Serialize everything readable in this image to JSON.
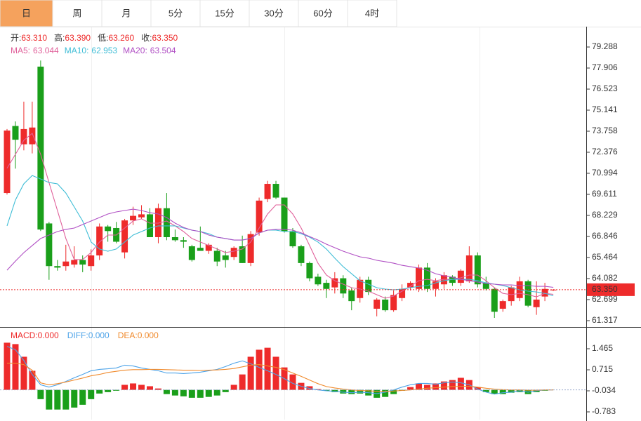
{
  "tabs": {
    "items": [
      "日",
      "周",
      "月",
      "5分",
      "15分",
      "30分",
      "60分",
      "4时"
    ],
    "active": 0
  },
  "chart_data": [
    {
      "type": "candlestick",
      "info": [
        {
          "label": "开:",
          "value": "63.310"
        },
        {
          "label": "高:",
          "value": "63.390"
        },
        {
          "label": "低:",
          "value": "63.260"
        },
        {
          "label": "收:",
          "value": "63.350"
        }
      ],
      "up_color": "#ee2b2b",
      "down_color": "#1a9f1a",
      "open": [
        69.7,
        74.1,
        72.9,
        72.9,
        78.0,
        67.7,
        64.9,
        64.9,
        65.0,
        65.3,
        64.9,
        65.6,
        67.5,
        67.4,
        65.8,
        67.9,
        68.1,
        68.3,
        66.8,
        68.7,
        66.8,
        66.6,
        66.2,
        66.1,
        65.9,
        65.9,
        65.6,
        65.5,
        66.2,
        65.1,
        67.1,
        69.3,
        70.3,
        69.4,
        67.2,
        66.2,
        65.1,
        64.2,
        63.8,
        63.5,
        64.1,
        63.3,
        62.8,
        64.0,
        62.1,
        62.7,
        62.0,
        62.8,
        63.5,
        63.4,
        64.8,
        63.4,
        63.7,
        64.2,
        63.8,
        63.9,
        65.6,
        63.8,
        63.4,
        62.1,
        62.6,
        62.8,
        63.9,
        62.2,
        62.9,
        63.31
      ],
      "high": [
        73.9,
        74.4,
        75.7,
        75.7,
        78.4,
        67.8,
        65.3,
        66.3,
        66.2,
        65.6,
        66.0,
        67.7,
        67.6,
        67.8,
        68.0,
        68.8,
        68.9,
        68.7,
        69.0,
        69.7,
        67.3,
        66.8,
        66.3,
        67.5,
        66.4,
        66.1,
        65.9,
        66.2,
        66.9,
        67.2,
        69.4,
        70.5,
        70.5,
        69.4,
        67.4,
        66.3,
        65.2,
        64.4,
        64.0,
        64.5,
        64.3,
        63.5,
        64.2,
        64.2,
        62.8,
        62.9,
        63.3,
        63.7,
        63.9,
        65.0,
        65.1,
        64.1,
        64.5,
        64.3,
        64.7,
        66.2,
        65.8,
        64.2,
        63.5,
        62.7,
        63.6,
        64.2,
        64.0,
        63.9,
        63.8,
        63.39
      ],
      "low": [
        69.6,
        71.3,
        72.5,
        72.3,
        67.2,
        64.0,
        64.6,
        64.6,
        64.8,
        64.5,
        64.6,
        65.3,
        66.5,
        66.4,
        65.4,
        67.6,
        68.0,
        66.8,
        66.4,
        66.6,
        66.5,
        66.1,
        65.2,
        65.9,
        65.7,
        64.9,
        64.8,
        65.3,
        65.1,
        64.9,
        66.9,
        69.1,
        69.3,
        67.1,
        66.1,
        64.9,
        63.9,
        63.6,
        62.8,
        63.1,
        62.8,
        62.0,
        62.5,
        63.0,
        61.6,
        61.9,
        61.9,
        62.6,
        63.3,
        63.2,
        63.2,
        62.9,
        63.4,
        63.6,
        63.6,
        63.8,
        63.5,
        63.3,
        61.5,
        61.9,
        62.3,
        62.6,
        62.2,
        61.7,
        62.6,
        63.26
      ],
      "close": [
        73.8,
        73.2,
        73.9,
        74.0,
        67.3,
        64.9,
        64.8,
        65.2,
        65.3,
        65.0,
        65.6,
        67.5,
        67.2,
        66.5,
        67.9,
        68.2,
        68.3,
        66.8,
        68.7,
        66.8,
        66.6,
        66.5,
        65.3,
        65.9,
        66.3,
        65.2,
        65.3,
        66.1,
        65.1,
        67.0,
        69.2,
        70.3,
        69.4,
        67.2,
        66.2,
        65.1,
        64.1,
        63.7,
        63.4,
        64.1,
        63.1,
        62.6,
        64.0,
        63.2,
        62.7,
        62.0,
        63.0,
        63.4,
        63.8,
        64.8,
        63.4,
        63.9,
        64.3,
        63.8,
        64.6,
        65.6,
        63.7,
        63.4,
        61.9,
        62.6,
        63.5,
        63.9,
        62.3,
        62.7,
        63.4,
        63.35
      ],
      "series": [
        {
          "name": "MA5:",
          "last_label": "63.044",
          "color": "#e0609a",
          "values": [
            71.32,
            72.24,
            73.16,
            73.62,
            72.24,
            70.39,
            68.55,
            66.71,
            65.33,
            65.33,
            65.79,
            66.48,
            66.94,
            66.94,
            67.4,
            67.86,
            68.0,
            67.72,
            67.72,
            67.86,
            67.54,
            67.17,
            66.71,
            66.48,
            66.25,
            66.02,
            65.79,
            65.88,
            66.02,
            66.48,
            67.4,
            68.32,
            68.92,
            68.92,
            68.32,
            67.4,
            66.25,
            65.09,
            64.31,
            63.94,
            63.71,
            63.48,
            63.39,
            63.25,
            63.02,
            62.79,
            62.93,
            63.25,
            63.57,
            63.94,
            64.03,
            63.94,
            64.03,
            64.03,
            64.13,
            64.31,
            64.31,
            63.94,
            63.48,
            63.11,
            63.02,
            63.11,
            63.02,
            62.88,
            63.11,
            63.044
          ]
        },
        {
          "name": "MA10:",
          "last_label": "62.953",
          "color": "#3fbdd6",
          "values": [
            67.54,
            69.24,
            70.3,
            70.85,
            70.62,
            70.39,
            70.3,
            69.7,
            68.78,
            67.86,
            66.48,
            66.02,
            65.88,
            66.02,
            66.48,
            66.94,
            67.17,
            67.4,
            67.54,
            67.54,
            67.54,
            67.4,
            67.26,
            67.17,
            67.03,
            66.8,
            66.71,
            66.61,
            66.61,
            66.71,
            67.08,
            67.26,
            67.26,
            67.17,
            67.17,
            67.03,
            66.8,
            66.48,
            66.02,
            65.42,
            64.86,
            64.4,
            63.94,
            63.71,
            63.48,
            63.39,
            63.34,
            63.39,
            63.48,
            63.57,
            63.62,
            63.8,
            63.94,
            64.03,
            64.03,
            64.03,
            63.94,
            63.8,
            63.71,
            63.62,
            63.48,
            63.34,
            63.25,
            63.2,
            63.11,
            62.953
          ]
        },
        {
          "name": "MA20:",
          "last_label": "63.504",
          "color": "#b04fc4",
          "values": [
            64.63,
            65.23,
            65.78,
            66.25,
            66.71,
            66.94,
            67.17,
            67.31,
            67.4,
            67.63,
            67.86,
            68.09,
            68.32,
            68.46,
            68.55,
            68.64,
            68.55,
            68.41,
            68.32,
            68.09,
            67.72,
            67.44,
            67.26,
            67.17,
            66.94,
            66.8,
            66.71,
            66.61,
            66.61,
            66.71,
            67.08,
            67.26,
            67.31,
            67.31,
            67.26,
            67.08,
            66.84,
            66.61,
            66.34,
            66.11,
            65.88,
            65.69,
            65.51,
            65.42,
            65.28,
            65.19,
            65.09,
            64.95,
            64.86,
            64.77,
            64.63,
            64.4,
            64.26,
            64.17,
            64.03,
            63.94,
            63.85,
            63.76,
            63.71,
            63.66,
            63.66,
            63.62,
            63.62,
            63.57,
            63.57,
            63.504
          ]
        }
      ],
      "last_price": {
        "value": 63.35,
        "label": "63.350"
      },
      "ylim": [
        60.901,
        80.624
      ],
      "yticks": [
        79.288,
        77.906,
        76.523,
        75.141,
        73.758,
        72.376,
        70.994,
        69.611,
        68.229,
        66.846,
        65.464,
        64.082,
        62.699,
        61.317
      ]
    },
    {
      "type": "macd",
      "series": [
        {
          "name": "MACD:",
          "last_label": "0.000",
          "color": "#ee2b2b",
          "down_color": "#1a9f1a",
          "kind": "bar",
          "values": [
            1.68,
            1.63,
            1.18,
            0.68,
            -0.33,
            -0.7,
            -0.7,
            -0.7,
            -0.63,
            -0.53,
            -0.33,
            -0.13,
            -0.08,
            -0.03,
            0.18,
            0.23,
            0.18,
            0.13,
            0.05,
            -0.15,
            -0.2,
            -0.23,
            -0.28,
            -0.28,
            -0.25,
            -0.2,
            -0.08,
            0.18,
            0.55,
            1.18,
            1.43,
            1.5,
            1.18,
            0.8,
            0.55,
            0.25,
            0.13,
            0.03,
            -0.03,
            -0.08,
            -0.13,
            -0.15,
            -0.13,
            -0.2,
            -0.28,
            -0.25,
            -0.15,
            -0.03,
            0.1,
            0.23,
            0.18,
            0.23,
            0.3,
            0.35,
            0.43,
            0.35,
            0.1,
            -0.08,
            -0.15,
            -0.15,
            -0.1,
            -0.08,
            -0.15,
            -0.08,
            -0.03,
            0
          ]
        },
        {
          "name": "DIFF:",
          "last_label": "0.000",
          "color": "#4da3e8",
          "kind": "line",
          "values": [
            1.55,
            1.43,
            1.05,
            0.55,
            0.18,
            0.1,
            0.18,
            0.3,
            0.43,
            0.55,
            0.68,
            0.73,
            0.75,
            0.78,
            0.88,
            0.85,
            0.78,
            0.73,
            0.68,
            0.6,
            0.6,
            0.58,
            0.6,
            0.63,
            0.68,
            0.73,
            0.83,
            0.95,
            1.03,
            0.93,
            0.8,
            0.68,
            0.55,
            0.4,
            0.23,
            0.13,
            0.05,
            0,
            -0.03,
            -0.05,
            -0.08,
            -0.1,
            -0.08,
            -0.1,
            -0.13,
            -0.08,
            0,
            0.1,
            0.18,
            0.23,
            0.23,
            0.2,
            0.25,
            0.28,
            0.25,
            0.18,
            0.03,
            -0.08,
            -0.15,
            -0.1,
            -0.08,
            -0.03,
            -0.08,
            -0.03,
            0,
            0
          ]
        },
        {
          "name": "DEA:",
          "last_label": "0.000",
          "color": "#f08a2c",
          "kind": "line",
          "values": [
            0.95,
            0.95,
            0.9,
            0.7,
            0.25,
            0.18,
            0.22,
            0.28,
            0.35,
            0.42,
            0.5,
            0.55,
            0.62,
            0.66,
            0.7,
            0.72,
            0.72,
            0.73,
            0.73,
            0.72,
            0.71,
            0.7,
            0.7,
            0.69,
            0.7,
            0.71,
            0.73,
            0.76,
            0.82,
            0.88,
            0.9,
            0.85,
            0.8,
            0.72,
            0.6,
            0.48,
            0.35,
            0.22,
            0.12,
            0.07,
            0.03,
            0,
            -0.02,
            -0.03,
            -0.05,
            -0.05,
            -0.04,
            -0.02,
            0,
            0.03,
            0.06,
            0.08,
            0.1,
            0.12,
            0.13,
            0.13,
            0.1,
            0.06,
            0.03,
            0.01,
            0,
            0,
            -0.01,
            -0.01,
            0,
            0
          ]
        }
      ],
      "ylim": [
        -1.058,
        2.215
      ],
      "yticks": [
        1.465,
        0.715,
        -0.034,
        -0.783
      ]
    }
  ]
}
